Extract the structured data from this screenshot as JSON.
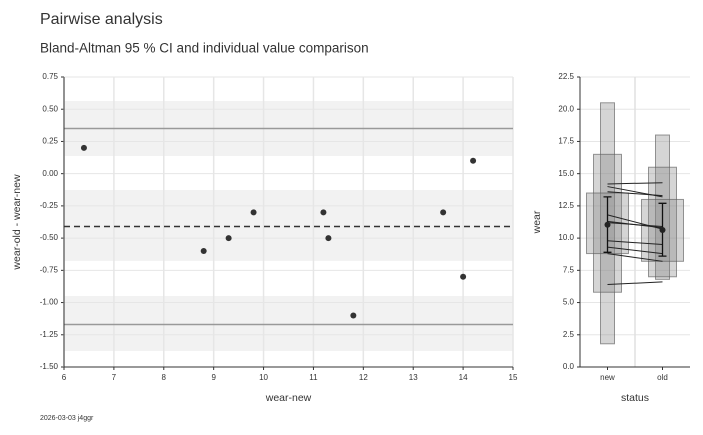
{
  "title": "Pairwise analysis",
  "subtitle": "Bland-Altman 95 % CI and individual value comparison",
  "footer": "2026-03-03 j4ggr",
  "chart_data": [
    {
      "type": "scatter",
      "xlabel": "wear-new",
      "ylabel": "wear-old - wear-new",
      "x": [
        6.4,
        8.8,
        9.3,
        9.8,
        11.2,
        11.3,
        11.8,
        13.6,
        14.0,
        14.2
      ],
      "values": [
        0.2,
        -0.6,
        -0.5,
        -0.3,
        -0.3,
        -0.5,
        -1.1,
        -0.3,
        -0.8,
        0.1
      ],
      "color": "#333333",
      "mean": -0.41,
      "limits": [
        -1.17,
        0.35
      ],
      "bands": [
        [
          0.137,
          0.564
        ],
        [
          -0.677,
          -0.127
        ],
        [
          -1.376,
          -0.949
        ]
      ],
      "xlim": [
        6,
        15
      ],
      "xticks": [
        6,
        7,
        8,
        9,
        10,
        11,
        12,
        13,
        14,
        15
      ],
      "ylim": [
        -1.5,
        0.75
      ],
      "yticks": [
        {
          "value": -1.5,
          "label": "-1.50"
        },
        {
          "value": -1.25,
          "label": "-1.25"
        },
        {
          "value": -1,
          "label": "-1.00"
        },
        {
          "value": -0.75,
          "label": "-0.75"
        },
        {
          "value": -0.5,
          "label": "-0.50"
        },
        {
          "value": -0.25,
          "label": "-0.25"
        },
        {
          "value": 0,
          "label": "0.00"
        },
        {
          "value": 0.25,
          "label": "0.25"
        },
        {
          "value": 0.5,
          "label": "0.50"
        },
        {
          "value": 0.75,
          "label": "0.75"
        }
      ],
      "grid": true
    },
    {
      "type": "boxen",
      "xlabel": "status",
      "ylabel": "wear",
      "categories": [
        "new",
        "old"
      ],
      "boxes": [
        {
          "levels": [
            [
              8.8,
              13.5
            ],
            [
              5.8,
              16.5
            ],
            [
              1.8,
              20.5
            ]
          ],
          "mean": 11.04,
          "ci": [
            8.9,
            13.2
          ]
        },
        {
          "levels": [
            [
              8.2,
              13.0
            ],
            [
              7.0,
              15.5
            ],
            [
              6.8,
              18.0
            ]
          ],
          "mean": 10.63,
          "ci": [
            8.6,
            12.7
          ]
        }
      ],
      "values": [
        [
          6.4,
          8.8,
          9.3,
          9.8,
          11.2,
          11.3,
          11.8,
          13.6,
          14.0,
          14.2
        ],
        [
          6.6,
          8.2,
          8.8,
          9.5,
          10.9,
          10.8,
          10.7,
          13.3,
          13.2,
          14.3
        ]
      ],
      "color": "#888888",
      "ylim": [
        0,
        22.5
      ],
      "yticks": [
        {
          "value": 0,
          "label": "0.0"
        },
        2.5,
        {
          "value": 5,
          "label": "5.0"
        },
        7.5,
        {
          "value": 10,
          "label": "10.0"
        },
        12.5,
        {
          "value": 15,
          "label": "15.0"
        },
        17.5,
        {
          "value": 20,
          "label": "20.0"
        },
        22.5
      ],
      "grid": true
    }
  ]
}
